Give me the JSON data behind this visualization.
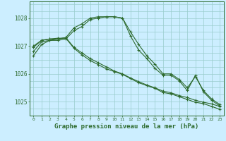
{
  "bg_color": "#cceeff",
  "grid_color": "#99cccc",
  "line_color": "#2d6a2d",
  "title": "Graphe pression niveau de la mer (hPa)",
  "title_color": "#2d6a2d",
  "xlim": [
    -0.5,
    23.5
  ],
  "ylim": [
    1024.5,
    1028.6
  ],
  "yticks": [
    1025,
    1026,
    1027,
    1028
  ],
  "xtick_labels": [
    "0",
    "1",
    "2",
    "3",
    "4",
    "5",
    "6",
    "7",
    "8",
    "9",
    "10",
    "11",
    "12",
    "13",
    "14",
    "15",
    "16",
    "17",
    "18",
    "19",
    "20",
    "21",
    "22",
    "23"
  ],
  "series": [
    {
      "x": [
        0,
        1,
        2,
        3,
        4,
        5,
        6,
        7,
        8,
        9,
        10,
        11,
        12,
        13,
        14,
        15,
        16,
        17,
        18,
        19,
        20,
        21,
        22,
        23
      ],
      "y": [
        1026.65,
        1027.05,
        1027.2,
        1027.25,
        1027.3,
        1027.65,
        1027.8,
        1028.0,
        1028.05,
        1028.05,
        1028.05,
        1028.0,
        1027.5,
        1027.05,
        1026.65,
        1026.35,
        1026.0,
        1026.0,
        1025.8,
        1025.5,
        1025.9,
        1025.4,
        1025.1,
        1024.9
      ]
    },
    {
      "x": [
        0,
        1,
        2,
        3,
        4,
        5,
        6,
        7,
        8,
        9,
        10,
        11,
        12,
        13,
        14,
        15,
        16,
        17,
        18,
        19,
        20,
        21,
        22,
        23
      ],
      "y": [
        1026.8,
        1027.15,
        1027.2,
        1027.2,
        1027.25,
        1027.55,
        1027.7,
        1027.95,
        1028.0,
        1028.05,
        1028.05,
        1028.0,
        1027.35,
        1026.85,
        1026.55,
        1026.2,
        1025.95,
        1025.95,
        1025.75,
        1025.4,
        1025.95,
        1025.35,
        1025.05,
        1024.85
      ]
    },
    {
      "x": [
        0,
        1,
        2,
        3,
        4,
        5,
        6,
        7,
        8,
        9,
        10,
        11,
        12,
        13,
        14,
        15,
        16,
        17,
        18,
        19,
        20,
        21,
        22,
        23
      ],
      "y": [
        1026.95,
        1027.2,
        1027.25,
        1027.25,
        1027.3,
        1026.95,
        1026.75,
        1026.55,
        1026.4,
        1026.25,
        1026.1,
        1026.0,
        1025.85,
        1025.72,
        1025.6,
        1025.5,
        1025.38,
        1025.32,
        1025.22,
        1025.15,
        1025.05,
        1024.98,
        1024.92,
        1024.83
      ]
    },
    {
      "x": [
        0,
        1,
        2,
        3,
        4,
        5,
        6,
        7,
        8,
        9,
        10,
        11,
        12,
        13,
        14,
        15,
        16,
        17,
        18,
        19,
        20,
        21,
        22,
        23
      ],
      "y": [
        1027.0,
        1027.2,
        1027.25,
        1027.28,
        1027.28,
        1026.92,
        1026.68,
        1026.48,
        1026.33,
        1026.18,
        1026.08,
        1025.98,
        1025.83,
        1025.68,
        1025.58,
        1025.48,
        1025.33,
        1025.28,
        1025.18,
        1025.08,
        1024.98,
        1024.93,
        1024.83,
        1024.73
      ]
    }
  ]
}
